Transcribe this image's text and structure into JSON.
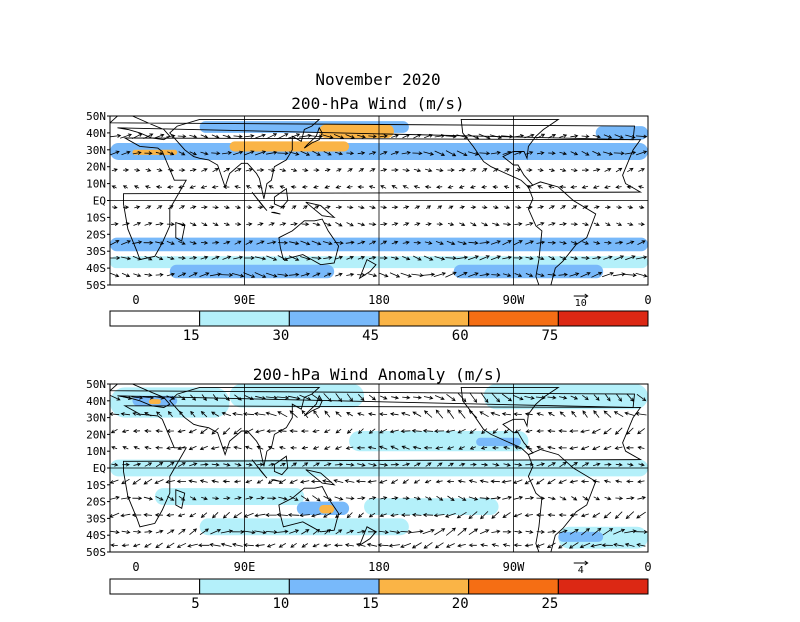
{
  "figure": {
    "title_line1": "November 2020"
  },
  "chart_data": [
    {
      "type": "heatmap",
      "title": "200-hPa Wind (m/s)",
      "y_ticks": [
        "50N",
        "40N",
        "30N",
        "20N",
        "10N",
        "EQ",
        "10S",
        "20S",
        "30S",
        "40S",
        "50S"
      ],
      "x_ticks": [
        "0",
        "90E",
        "180",
        "90W",
        "0"
      ],
      "reference_vector_label": "10",
      "colorbar": {
        "levels": [
          "15",
          "30",
          "45",
          "60",
          "75"
        ],
        "colors": [
          "#ffffff",
          "#b4f0fa",
          "#78b9fa",
          "#fab446",
          "#f56e14",
          "#dc2814"
        ]
      },
      "bands": [
        {
          "lat": 38,
          "speed": 35,
          "angle": 2
        },
        {
          "lat": 28,
          "speed": 30,
          "angle": -3
        },
        {
          "lat": 18,
          "speed": 12,
          "angle": 8
        },
        {
          "lat": 8,
          "speed": 8,
          "angle": 175
        },
        {
          "lat": -4,
          "speed": 8,
          "angle": 10
        },
        {
          "lat": -14,
          "speed": 15,
          "angle": -4
        },
        {
          "lat": -25,
          "speed": 25,
          "angle": 3
        },
        {
          "lat": -34,
          "speed": 30,
          "angle": -2
        },
        {
          "lat": -44,
          "speed": 35,
          "angle": 1
        }
      ],
      "shaded_regions": [
        {
          "lon": [
            0,
            360
          ],
          "lat": [
            24,
            34
          ],
          "level": 2
        },
        {
          "lon": [
            60,
            200
          ],
          "lat": [
            40,
            47
          ],
          "level": 2
        },
        {
          "lon": [
            325,
            360
          ],
          "lat": [
            36,
            44
          ],
          "level": 2
        },
        {
          "lon": [
            15,
            45
          ],
          "lat": [
            27,
            30
          ],
          "level": 3
        },
        {
          "lon": [
            80,
            160
          ],
          "lat": [
            29,
            35
          ],
          "level": 3
        },
        {
          "lon": [
            140,
            190
          ],
          "lat": [
            37,
            45
          ],
          "level": 3
        },
        {
          "lon": [
            0,
            360
          ],
          "lat": [
            -30,
            -22
          ],
          "level": 2
        },
        {
          "lon": [
            0,
            360
          ],
          "lat": [
            -40,
            -33
          ],
          "level": 1
        },
        {
          "lon": [
            40,
            150
          ],
          "lat": [
            -46,
            -38
          ],
          "level": 2
        },
        {
          "lon": [
            230,
            330
          ],
          "lat": [
            -46,
            -38
          ],
          "level": 2
        }
      ]
    },
    {
      "type": "heatmap",
      "title": "200-hPa Wind Anomaly (m/s)",
      "y_ticks": [
        "50N",
        "40N",
        "30N",
        "20N",
        "10N",
        "EQ",
        "10S",
        "20S",
        "30S",
        "40S",
        "50S"
      ],
      "x_ticks": [
        "0",
        "90E",
        "180",
        "90W",
        "0"
      ],
      "reference_vector_label": "4",
      "colorbar": {
        "levels": [
          "5",
          "10",
          "15",
          "20",
          "25"
        ],
        "colors": [
          "#ffffff",
          "#b4f0fa",
          "#78b9fa",
          "#fab446",
          "#f56e14",
          "#dc2814"
        ]
      },
      "bands": [
        {
          "lat": 42,
          "speed": 6,
          "angle": -30
        },
        {
          "lat": 32,
          "speed": 5,
          "angle": 150
        },
        {
          "lat": 22,
          "speed": 4,
          "angle": 200
        },
        {
          "lat": 12,
          "speed": 3,
          "angle": 180
        },
        {
          "lat": 2,
          "speed": 3,
          "angle": 10
        },
        {
          "lat": -8,
          "speed": 4,
          "angle": 190
        },
        {
          "lat": -18,
          "speed": 4,
          "angle": -10
        },
        {
          "lat": -28,
          "speed": 5,
          "angle": 200
        },
        {
          "lat": -38,
          "speed": 6,
          "angle": 15
        },
        {
          "lat": -46,
          "speed": 5,
          "angle": 190
        }
      ],
      "shaded_regions": [
        {
          "lon": [
            0,
            80
          ],
          "lat": [
            30,
            48
          ],
          "level": 1
        },
        {
          "lon": [
            80,
            170
          ],
          "lat": [
            36,
            50
          ],
          "level": 1
        },
        {
          "lon": [
            250,
            360
          ],
          "lat": [
            35,
            50
          ],
          "level": 1
        },
        {
          "lon": [
            160,
            280
          ],
          "lat": [
            10,
            22
          ],
          "level": 1
        },
        {
          "lon": [
            0,
            360
          ],
          "lat": [
            -5,
            5
          ],
          "level": 1
        },
        {
          "lon": [
            30,
            130
          ],
          "lat": [
            -22,
            -12
          ],
          "level": 1
        },
        {
          "lon": [
            170,
            260
          ],
          "lat": [
            -28,
            -18
          ],
          "level": 1
        },
        {
          "lon": [
            60,
            200
          ],
          "lat": [
            -40,
            -30
          ],
          "level": 1
        },
        {
          "lon": [
            300,
            360
          ],
          "lat": [
            -48,
            -35
          ],
          "level": 1
        },
        {
          "lon": [
            15,
            45
          ],
          "lat": [
            37,
            43
          ],
          "level": 2
        },
        {
          "lon": [
            245,
            275
          ],
          "lat": [
            13,
            18
          ],
          "level": 2
        },
        {
          "lon": [
            125,
            160
          ],
          "lat": [
            -28,
            -20
          ],
          "level": 2
        },
        {
          "lon": [
            300,
            330
          ],
          "lat": [
            -44,
            -38
          ],
          "level": 2
        },
        {
          "lon": [
            26,
            34
          ],
          "lat": [
            38,
            41
          ],
          "level": 3
        },
        {
          "lon": [
            140,
            150
          ],
          "lat": [
            -27,
            -22
          ],
          "level": 3
        }
      ]
    }
  ]
}
